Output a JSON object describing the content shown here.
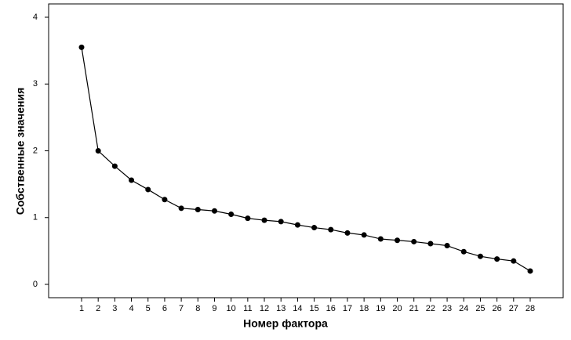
{
  "chart_data": {
    "type": "line",
    "xlabel": "Номер фактора",
    "ylabel": "Собственные значения",
    "categories": [
      "1",
      "2",
      "3",
      "4",
      "5",
      "6",
      "7",
      "8",
      "9",
      "10",
      "11",
      "12",
      "13",
      "14",
      "15",
      "16",
      "17",
      "18",
      "19",
      "20",
      "21",
      "22",
      "23",
      "24",
      "25",
      "26",
      "27",
      "28"
    ],
    "values": [
      3.55,
      2.0,
      1.77,
      1.56,
      1.42,
      1.27,
      1.14,
      1.12,
      1.1,
      1.05,
      0.99,
      0.96,
      0.94,
      0.89,
      0.85,
      0.82,
      0.77,
      0.74,
      0.68,
      0.66,
      0.64,
      0.61,
      0.58,
      0.49,
      0.42,
      0.38,
      0.35,
      0.2
    ],
    "color": "#000000",
    "ylim": [
      0,
      4
    ],
    "yticks": [
      0,
      1,
      2,
      3,
      4
    ],
    "grid": false
  }
}
